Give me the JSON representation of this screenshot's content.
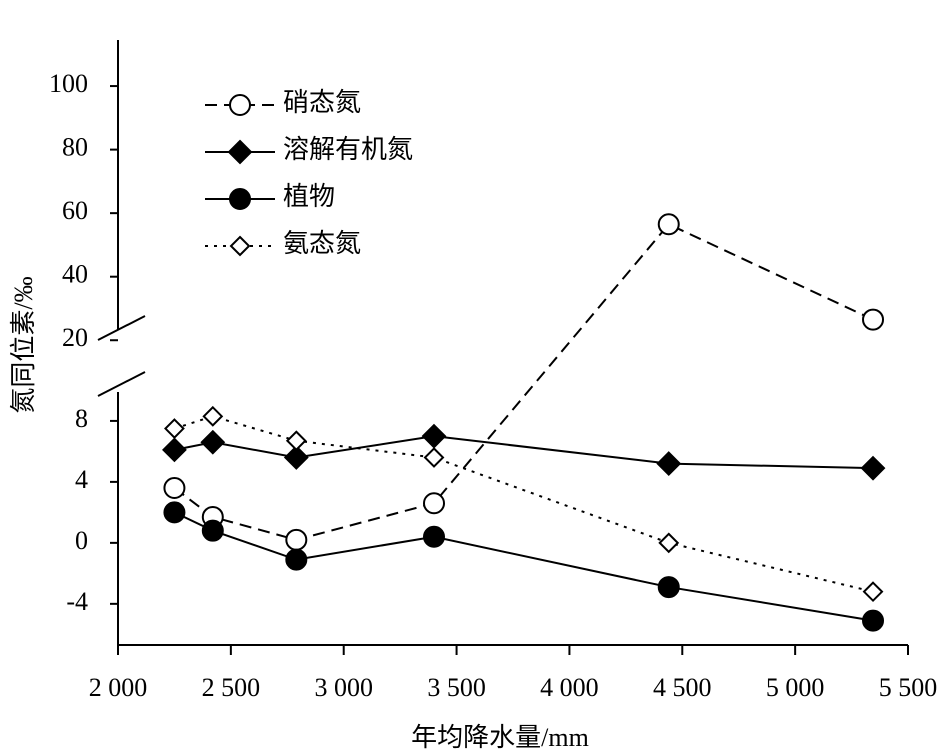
{
  "chart_data": {
    "type": "line",
    "x_label": "年均降水量/mm",
    "y_label": "氮同位素/‰",
    "x": [
      2250,
      2420,
      2790,
      3400,
      4440,
      5345
    ],
    "xlim": [
      2000,
      5500
    ],
    "xticks": [
      {
        "value": 2000,
        "label": "2 000"
      },
      {
        "value": 2500,
        "label": "2 500"
      },
      {
        "value": 3000,
        "label": "3 000"
      },
      {
        "value": 3500,
        "label": "3 500"
      },
      {
        "value": 4000,
        "label": "4 000"
      },
      {
        "value": 4500,
        "label": "4 500"
      },
      {
        "value": 5000,
        "label": "5 000"
      },
      {
        "value": 5500,
        "label": "5 500"
      }
    ],
    "y_segments": [
      {
        "ylim": [
          -6.7,
          9.7
        ],
        "yticks": [
          -4,
          0,
          4,
          8
        ]
      },
      {
        "ylim": [
          18.5,
          114.5
        ],
        "yticks": [
          20,
          40,
          60,
          80,
          100
        ]
      }
    ],
    "series": [
      {
        "name": "硝态氮",
        "color": "#000000",
        "marker": "circle-open",
        "line_style": "dashed",
        "values": [
          3.6,
          1.7,
          0.2,
          2.6,
          56.5,
          26.5
        ]
      },
      {
        "name": "溶解有机氮",
        "color": "#000000",
        "marker": "diamond-filled",
        "line_style": "solid",
        "values": [
          6.1,
          6.6,
          5.6,
          7.0,
          5.2,
          4.9
        ]
      },
      {
        "name": "植物",
        "color": "#000000",
        "marker": "circle-filled",
        "line_style": "solid",
        "values": [
          2.0,
          0.8,
          -1.1,
          0.4,
          -2.9,
          -5.1
        ]
      },
      {
        "name": "氨态氮",
        "color": "#000000",
        "marker": "diamond-open",
        "line_style": "dotted",
        "values": [
          7.5,
          8.3,
          6.7,
          5.6,
          0.0,
          -3.2
        ]
      }
    ]
  }
}
